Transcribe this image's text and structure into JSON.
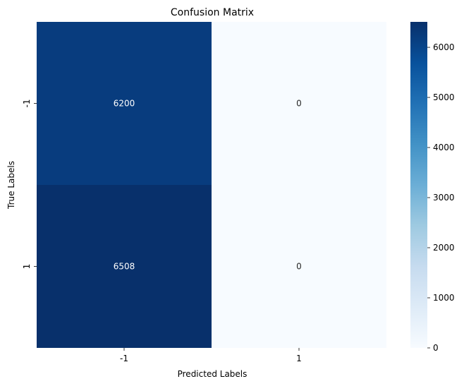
{
  "chart_data": {
    "type": "heatmap",
    "title": "Confusion Matrix",
    "xlabel": "Predicted Labels",
    "ylabel": "True Labels",
    "x_categories": [
      "-1",
      "1"
    ],
    "y_categories": [
      "-1",
      "1"
    ],
    "values": [
      [
        6200,
        0
      ],
      [
        6508,
        0
      ]
    ],
    "annotations": [
      [
        "6200",
        "0"
      ],
      [
        "6508",
        "0"
      ]
    ],
    "colormap": "Blues",
    "colorbar": {
      "range": [
        0,
        6508
      ],
      "ticks": [
        0,
        1000,
        2000,
        3000,
        4000,
        5000,
        6000
      ],
      "tick_labels": [
        "0",
        "1000",
        "2000",
        "3000",
        "4000",
        "5000",
        "6000"
      ]
    },
    "colors": {
      "low": "#f7fbff",
      "high": "#08306b",
      "cell_6200": "#0a3d7d",
      "text_on_dark": "#ffffff",
      "text_on_light": "#262626"
    }
  }
}
